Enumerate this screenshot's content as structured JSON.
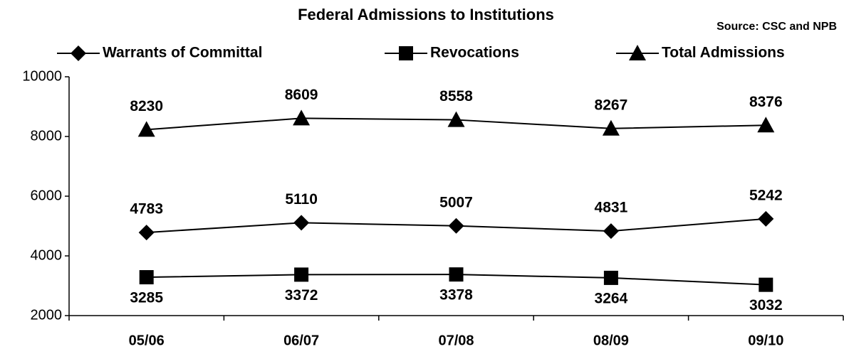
{
  "chart_data": {
    "type": "line",
    "title": "Federal Admissions to Institutions",
    "source": "Source: CSC and NPB",
    "categories": [
      "05/06",
      "06/07",
      "07/08",
      "08/09",
      "09/10"
    ],
    "series": [
      {
        "name": "Warrants of Committal",
        "color": "#000000",
        "values": [
          4783,
          5110,
          5007,
          4831,
          5242
        ]
      },
      {
        "name": "Revocations",
        "color": "#000000",
        "values": [
          3285,
          3372,
          3378,
          3264,
          3032
        ]
      },
      {
        "name": "Total Admissions",
        "color": "#000000",
        "values": [
          8230,
          8609,
          8558,
          8267,
          8376
        ]
      }
    ],
    "ylim": [
      2000,
      10000
    ],
    "yticks": [
      2000,
      4000,
      6000,
      8000,
      10000
    ],
    "grid": false,
    "legend": "top"
  }
}
